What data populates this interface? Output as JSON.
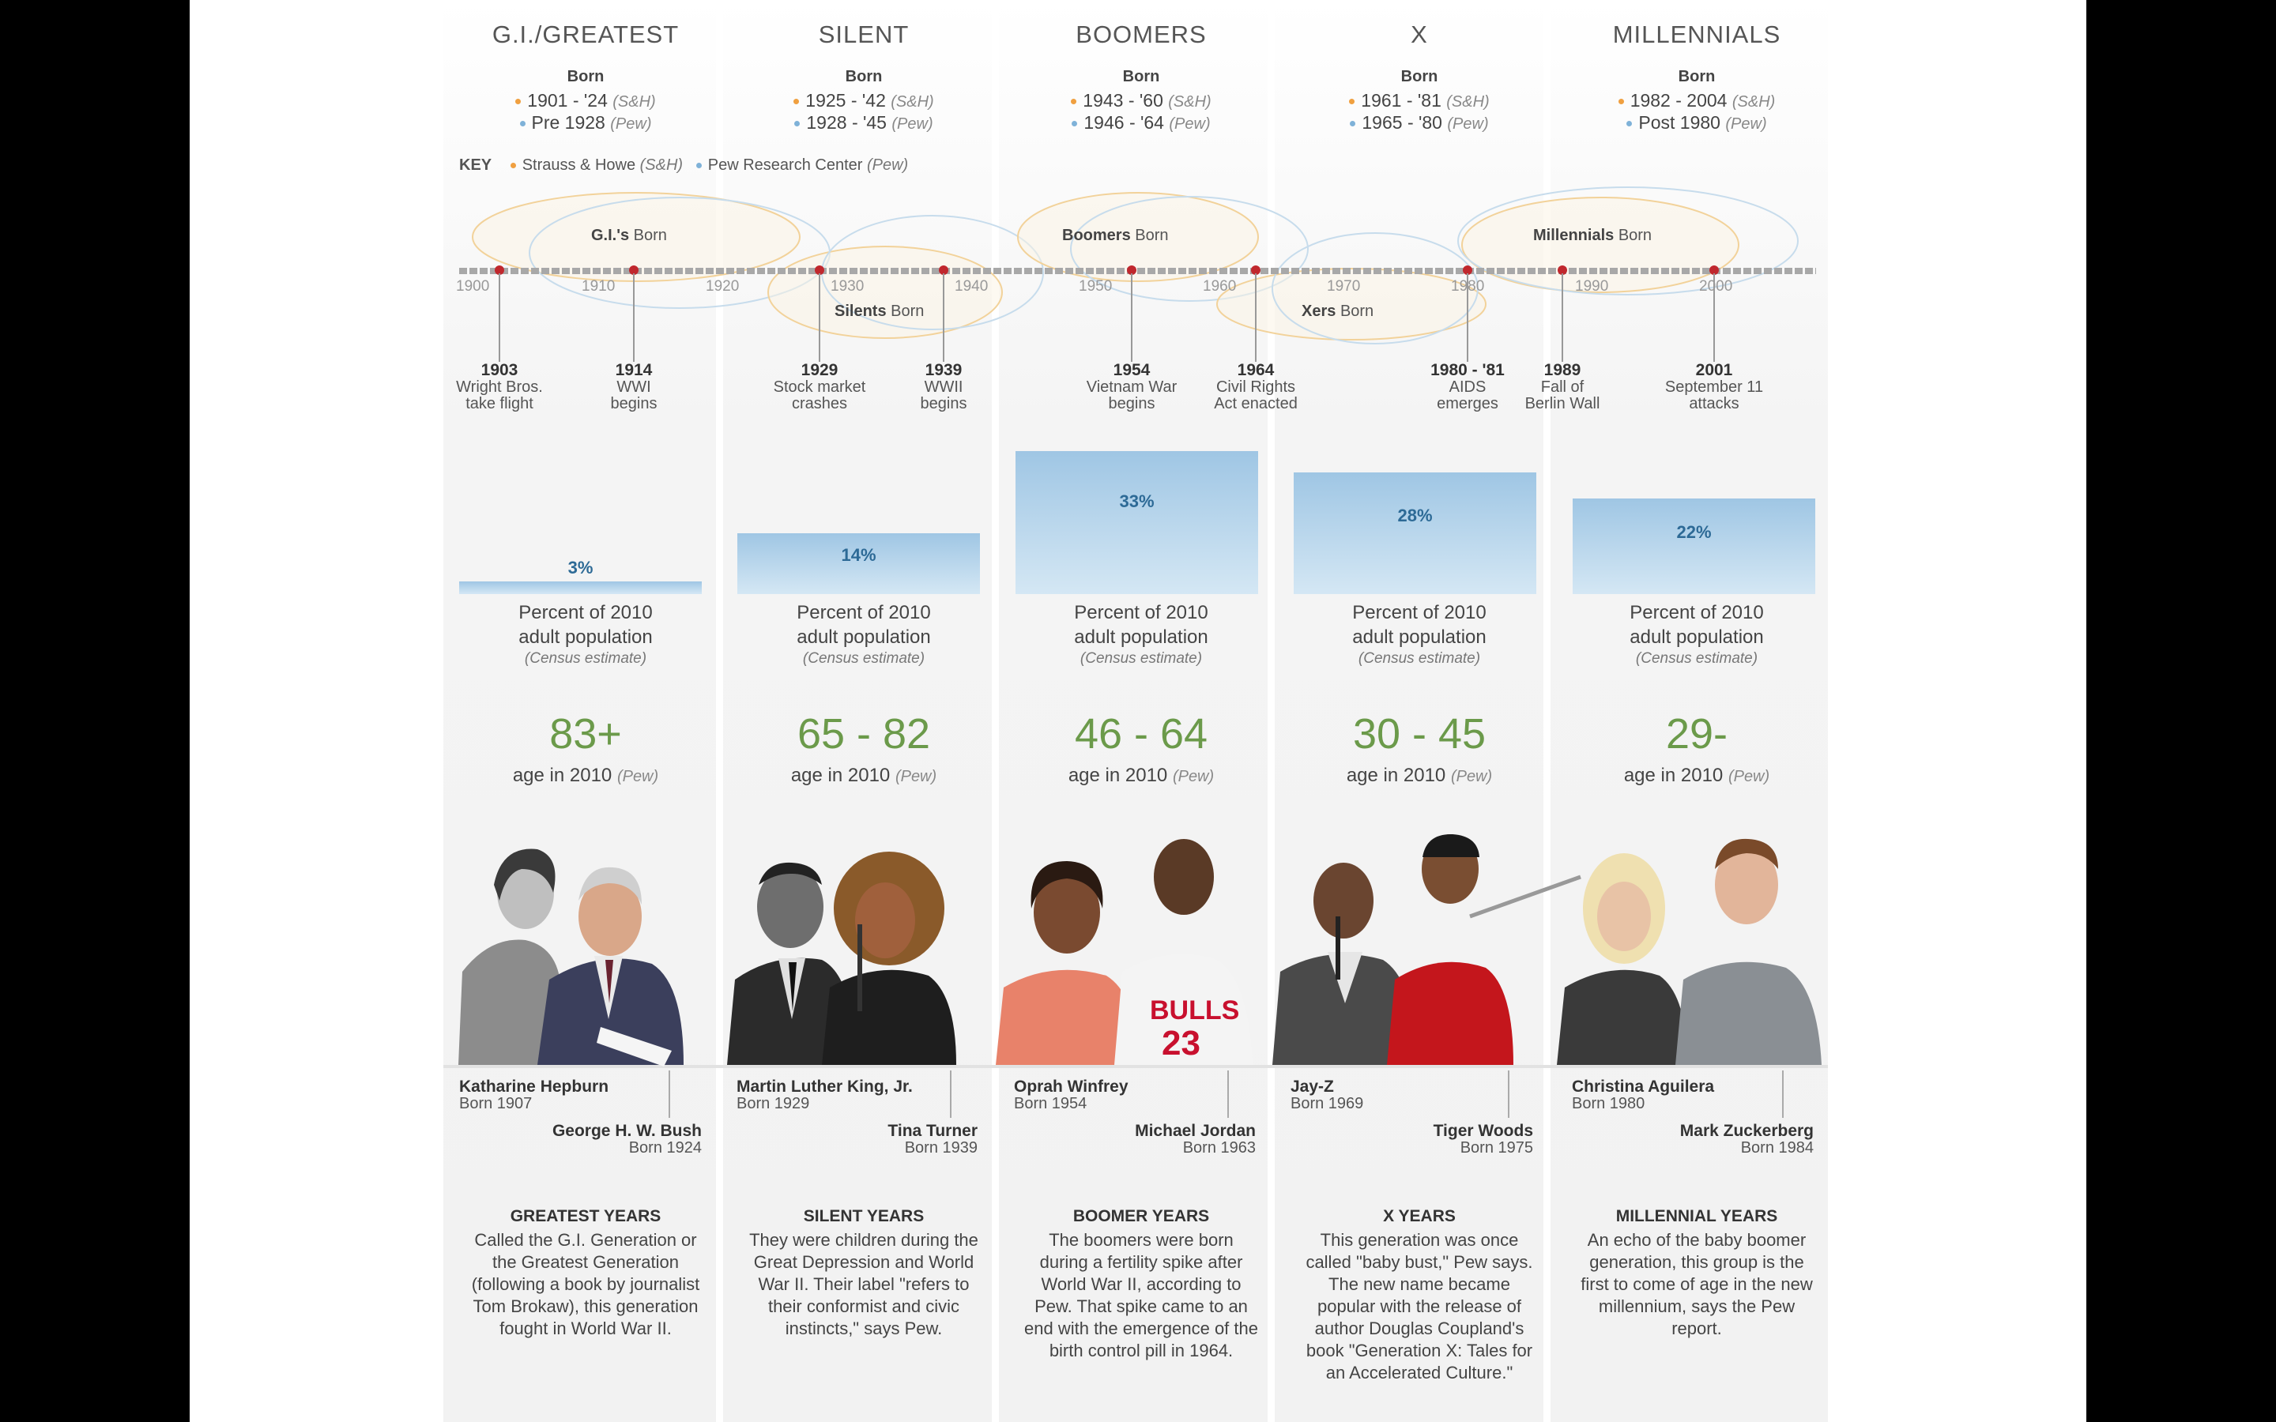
{
  "key": {
    "label": "KEY",
    "strauss": "Strauss & Howe",
    "strauss_abbr": "(S&H)",
    "pew": "Pew Research Center",
    "pew_abbr": "(Pew)"
  },
  "common": {
    "born": "Born",
    "pct_line1": "Percent of 2010",
    "pct_line2": "adult population",
    "census": "(Census estimate)",
    "age_lbl": "age in 2010",
    "pew_src": "(Pew)",
    "sh_src": "(S&H)"
  },
  "generations": [
    {
      "title": "G.I./GREATEST",
      "sh": "1901 - '24",
      "pew": "Pre 1928",
      "percent": 3,
      "percent_label": "3%",
      "age": "83+",
      "people": [
        {
          "name": "Katharine Hepburn",
          "born": "Born 1907"
        },
        {
          "name": "George H. W. Bush",
          "born": "Born 1924"
        }
      ],
      "years_title": "GREATEST YEARS",
      "years_text": "Called the G.I. Generation or the Greatest Generation (following a book by journalist Tom Brokaw), this generation fought in World War II."
    },
    {
      "title": "SILENT",
      "sh": "1925 - '42",
      "pew": "1928 - '45",
      "percent": 14,
      "percent_label": "14%",
      "age": "65 - 82",
      "people": [
        {
          "name": "Martin Luther King, Jr.",
          "born": "Born 1929"
        },
        {
          "name": "Tina Turner",
          "born": "Born 1939"
        }
      ],
      "years_title": "SILENT YEARS",
      "years_text": "They were children during the Great Depression and World War II. Their label \"refers to their conformist and civic instincts,\" says Pew."
    },
    {
      "title": "BOOMERS",
      "sh": "1943 - '60",
      "pew": "1946 - '64",
      "percent": 33,
      "percent_label": "33%",
      "age": "46 - 64",
      "people": [
        {
          "name": "Oprah Winfrey",
          "born": "Born 1954"
        },
        {
          "name": "Michael Jordan",
          "born": "Born 1963"
        }
      ],
      "years_title": "BOOMER YEARS",
      "years_text": "The boomers were born during a fertility spike after World War II, according to Pew. That spike came to an end with the emergence of the birth control pill in 1964."
    },
    {
      "title": "X",
      "sh": "1961 - '81",
      "pew": "1965 - '80",
      "percent": 28,
      "percent_label": "28%",
      "age": "30 - 45",
      "people": [
        {
          "name": "Jay-Z",
          "born": "Born 1969"
        },
        {
          "name": "Tiger Woods",
          "born": "Born 1975"
        }
      ],
      "years_title": "X YEARS",
      "years_text": "This generation was once called \"baby bust,\" Pew says. The new name became popular with the release of author Douglas Coupland's book \"Generation X: Tales for an Accelerated Culture.\""
    },
    {
      "title": "MILLENNIALS",
      "sh": "1982 - 2004",
      "pew": "Post 1980",
      "percent": 22,
      "percent_label": "22%",
      "age": "29-",
      "people": [
        {
          "name": "Christina Aguilera",
          "born": "Born 1980"
        },
        {
          "name": "Mark Zuckerberg",
          "born": "Born 1984"
        }
      ],
      "years_title": "MILLENNIAL YEARS",
      "years_text": "An echo of the baby boomer generation, this group is the first to come of age in the new millennium, says the Pew report."
    }
  ],
  "timeline": {
    "ticks": [
      "1900",
      "1910",
      "1920",
      "1930",
      "1940",
      "1950",
      "1960",
      "1970",
      "1980",
      "1990",
      "2000"
    ],
    "ellipses": [
      {
        "name": "G.I.'s",
        "suffix": "Born"
      },
      {
        "name": "Silents",
        "suffix": "Born"
      },
      {
        "name": "Boomers",
        "suffix": "Born"
      },
      {
        "name": "Xers",
        "suffix": "Born"
      },
      {
        "name": "Millennials",
        "suffix": "Born"
      }
    ],
    "events": [
      {
        "year": "1903",
        "text1": "Wright Bros.",
        "text2": "take flight"
      },
      {
        "year": "1914",
        "text1": "WWI",
        "text2": "begins"
      },
      {
        "year": "1929",
        "text1": "Stock market",
        "text2": "crashes"
      },
      {
        "year": "1939",
        "text1": "WWII",
        "text2": "begins"
      },
      {
        "year": "1954",
        "text1": "Vietnam War",
        "text2": "begins"
      },
      {
        "year": "1964",
        "text1": "Civil Rights",
        "text2": "Act enacted"
      },
      {
        "year": "1980 - '81",
        "text1": "AIDS",
        "text2": "emerges"
      },
      {
        "year": "1989",
        "text1": "Fall of",
        "text2": "Berlin Wall"
      },
      {
        "year": "2001",
        "text1": "September 11",
        "text2": "attacks"
      }
    ]
  },
  "colors": {
    "sh_dot": "#f0a040",
    "pew_dot": "#7fb2d8",
    "age_green": "#6b9a4a",
    "bar_blue": "#9fc6e4",
    "event_dot": "#c0272d"
  }
}
